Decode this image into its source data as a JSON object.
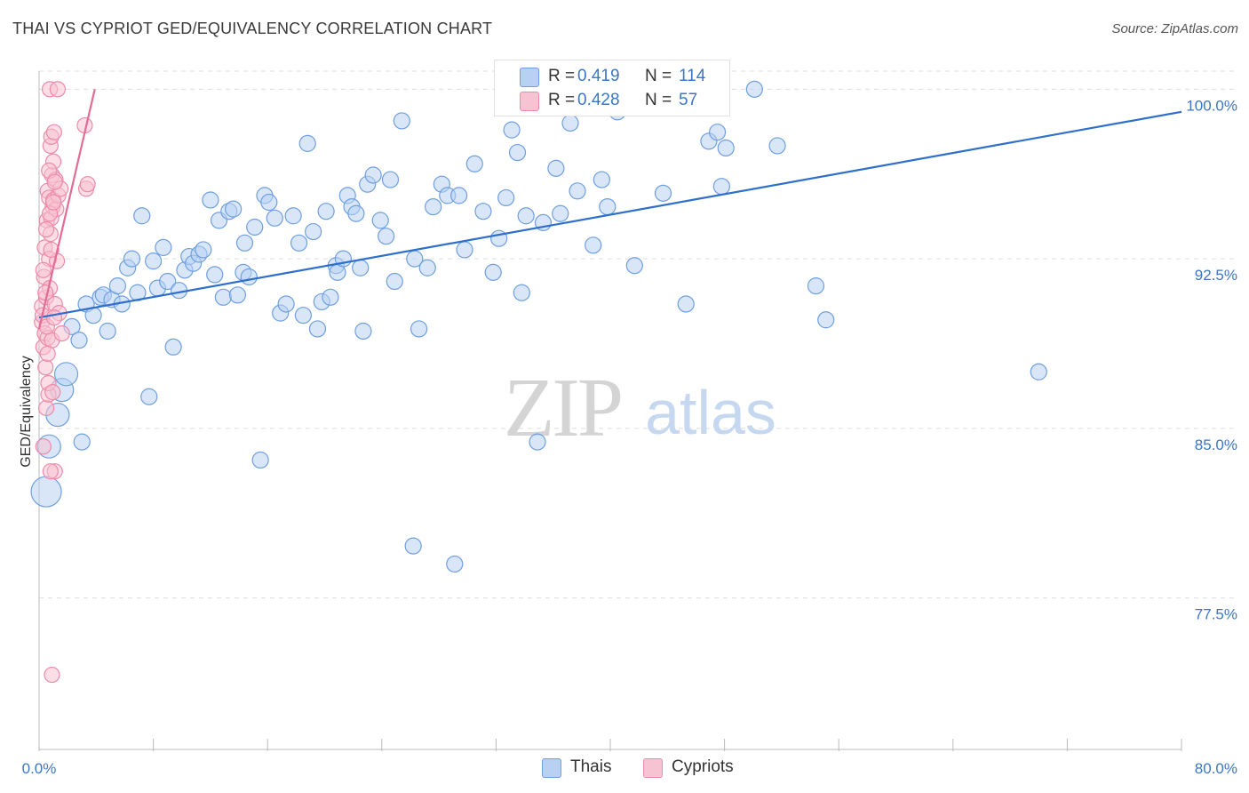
{
  "header": {
    "title": "THAI VS CYPRIOT GED/EQUIVALENCY CORRELATION CHART",
    "source": "Source: ZipAtlas.com"
  },
  "colors": {
    "thai_fill": "#b8d1f3",
    "thai_stroke": "#6f9fe0",
    "thai_line": "#2f6fcc",
    "cyp_fill": "#f7c3d2",
    "cyp_stroke": "#ec8bab",
    "cyp_line": "#e36b95",
    "tick_label": "#3b76c9",
    "grid": "#dddddd"
  },
  "legend": {
    "rows": [
      {
        "r_label": "R =",
        "r_value": "0.419",
        "n_label": "N =",
        "n_value": "114"
      },
      {
        "r_label": "R =",
        "r_value": "0.428",
        "n_label": "N =",
        "n_value": "57"
      }
    ]
  },
  "bottom_legend": {
    "thais": "Thais",
    "cypriots": "Cypriots"
  },
  "watermark": {
    "zip": "ZIP",
    "atlas": "atlas"
  },
  "chart_data": {
    "type": "scatter",
    "title": "THAI VS CYPRIOT GED/EQUIVALENCY CORRELATION CHART",
    "xlabel": "",
    "ylabel": "GED/Equivalency",
    "xlim": [
      0,
      80
    ],
    "ylim": [
      70.8,
      100.8
    ],
    "x_tick_labels": [
      "0.0%",
      "80.0%"
    ],
    "y_ticks": [
      77.5,
      85.0,
      92.5,
      100.0
    ],
    "y_tick_labels": [
      "77.5%",
      "85.0%",
      "92.5%",
      "100.0%"
    ],
    "grid": "horizontal dashed",
    "legend_position": "top-center",
    "series": [
      {
        "name": "Thais",
        "trend": {
          "x": [
            0,
            80
          ],
          "y": [
            89.9,
            99.0
          ]
        },
        "points": [
          [
            0.5,
            82.2
          ],
          [
            0.7,
            84.2
          ],
          [
            1.3,
            85.6
          ],
          [
            1.6,
            86.7
          ],
          [
            1.9,
            87.4
          ],
          [
            2.3,
            89.5
          ],
          [
            2.8,
            88.9
          ],
          [
            3.0,
            84.4
          ],
          [
            3.3,
            90.5
          ],
          [
            3.8,
            90.0
          ],
          [
            4.3,
            90.8
          ],
          [
            4.5,
            90.9
          ],
          [
            4.8,
            89.3
          ],
          [
            5.1,
            90.7
          ],
          [
            5.5,
            91.3
          ],
          [
            5.8,
            90.5
          ],
          [
            6.2,
            92.1
          ],
          [
            6.5,
            92.5
          ],
          [
            6.9,
            91.0
          ],
          [
            7.2,
            94.4
          ],
          [
            7.7,
            86.4
          ],
          [
            8.0,
            92.4
          ],
          [
            8.3,
            91.2
          ],
          [
            8.7,
            93.0
          ],
          [
            9.0,
            91.5
          ],
          [
            9.4,
            88.6
          ],
          [
            9.8,
            91.1
          ],
          [
            10.2,
            92.0
          ],
          [
            10.5,
            92.6
          ],
          [
            10.8,
            92.3
          ],
          [
            11.2,
            92.7
          ],
          [
            11.5,
            92.9
          ],
          [
            12.0,
            95.1
          ],
          [
            12.3,
            91.8
          ],
          [
            12.6,
            94.2
          ],
          [
            12.9,
            90.8
          ],
          [
            13.3,
            94.6
          ],
          [
            13.6,
            94.7
          ],
          [
            13.9,
            90.9
          ],
          [
            14.3,
            91.9
          ],
          [
            14.7,
            91.7
          ],
          [
            15.1,
            93.9
          ],
          [
            15.5,
            83.6
          ],
          [
            15.8,
            95.3
          ],
          [
            16.1,
            95.0
          ],
          [
            16.5,
            94.3
          ],
          [
            16.9,
            90.1
          ],
          [
            17.3,
            90.5
          ],
          [
            17.8,
            94.4
          ],
          [
            18.2,
            93.2
          ],
          [
            18.5,
            90.0
          ],
          [
            18.8,
            97.6
          ],
          [
            19.2,
            93.7
          ],
          [
            19.5,
            89.4
          ],
          [
            19.8,
            90.6
          ],
          [
            20.1,
            94.6
          ],
          [
            20.4,
            90.8
          ],
          [
            20.8,
            92.2
          ],
          [
            20.9,
            91.9
          ],
          [
            21.3,
            92.5
          ],
          [
            21.6,
            95.3
          ],
          [
            21.9,
            94.8
          ],
          [
            22.2,
            94.5
          ],
          [
            22.5,
            92.1
          ],
          [
            22.7,
            89.3
          ],
          [
            23.0,
            95.8
          ],
          [
            23.4,
            96.2
          ],
          [
            23.9,
            94.2
          ],
          [
            24.3,
            93.5
          ],
          [
            24.6,
            96.0
          ],
          [
            24.9,
            91.5
          ],
          [
            25.4,
            98.6
          ],
          [
            26.3,
            92.5
          ],
          [
            26.6,
            89.4
          ],
          [
            27.2,
            92.1
          ],
          [
            27.6,
            94.8
          ],
          [
            28.2,
            95.8
          ],
          [
            28.6,
            95.3
          ],
          [
            29.1,
            79.0
          ],
          [
            29.4,
            95.3
          ],
          [
            29.8,
            92.9
          ],
          [
            30.5,
            96.7
          ],
          [
            31.1,
            94.6
          ],
          [
            31.8,
            91.9
          ],
          [
            32.2,
            93.4
          ],
          [
            32.7,
            95.2
          ],
          [
            33.1,
            98.2
          ],
          [
            33.5,
            97.2
          ],
          [
            33.8,
            91.0
          ],
          [
            34.1,
            94.4
          ],
          [
            34.9,
            84.4
          ],
          [
            35.3,
            94.1
          ],
          [
            36.2,
            96.5
          ],
          [
            36.5,
            94.5
          ],
          [
            37.2,
            98.5
          ],
          [
            37.7,
            95.5
          ],
          [
            38.8,
            93.1
          ],
          [
            39.4,
            96.0
          ],
          [
            39.8,
            94.8
          ],
          [
            40.5,
            99.0
          ],
          [
            41.7,
            92.2
          ],
          [
            43.7,
            95.4
          ],
          [
            45.3,
            90.5
          ],
          [
            46.9,
            97.7
          ],
          [
            47.5,
            98.1
          ],
          [
            47.8,
            95.7
          ],
          [
            48.1,
            97.4
          ],
          [
            50.1,
            100.0
          ],
          [
            51.7,
            97.5
          ],
          [
            54.4,
            91.3
          ],
          [
            55.1,
            89.8
          ],
          [
            70.0,
            87.5
          ],
          [
            14.4,
            93.2
          ],
          [
            26.2,
            79.8
          ]
        ]
      },
      {
        "name": "Cypriots",
        "trend": {
          "x": [
            0,
            3.9
          ],
          "y": [
            89.4,
            100.0
          ]
        },
        "points": [
          [
            0.2,
            90.4
          ],
          [
            0.2,
            89.7
          ],
          [
            0.3,
            88.6
          ],
          [
            0.3,
            84.2
          ],
          [
            0.35,
            91.7
          ],
          [
            0.4,
            93.0
          ],
          [
            0.4,
            89.2
          ],
          [
            0.45,
            87.7
          ],
          [
            0.5,
            85.9
          ],
          [
            0.5,
            90.8
          ],
          [
            0.55,
            94.2
          ],
          [
            0.6,
            95.5
          ],
          [
            0.6,
            89.0
          ],
          [
            0.65,
            86.5
          ],
          [
            0.7,
            95.2
          ],
          [
            0.7,
            92.5
          ],
          [
            0.75,
            100.0
          ],
          [
            0.75,
            91.2
          ],
          [
            0.8,
            97.5
          ],
          [
            0.8,
            93.6
          ],
          [
            0.85,
            97.9
          ],
          [
            0.85,
            94.3
          ],
          [
            0.9,
            88.9
          ],
          [
            0.9,
            96.2
          ],
          [
            0.95,
            94.8
          ],
          [
            1.0,
            96.8
          ],
          [
            1.0,
            95.1
          ],
          [
            1.05,
            98.1
          ],
          [
            1.1,
            90.5
          ],
          [
            1.1,
            83.1
          ],
          [
            1.15,
            96.0
          ],
          [
            1.2,
            94.7
          ],
          [
            1.25,
            92.4
          ],
          [
            1.3,
            100.0
          ],
          [
            1.35,
            95.3
          ],
          [
            1.4,
            90.1
          ],
          [
            1.5,
            95.6
          ],
          [
            1.6,
            89.2
          ],
          [
            0.25,
            90.0
          ],
          [
            0.3,
            92.0
          ],
          [
            0.45,
            91.0
          ],
          [
            0.5,
            93.8
          ],
          [
            0.55,
            89.5
          ],
          [
            0.6,
            88.3
          ],
          [
            0.65,
            87.0
          ],
          [
            0.7,
            96.4
          ],
          [
            0.75,
            94.5
          ],
          [
            0.8,
            83.1
          ],
          [
            0.85,
            92.9
          ],
          [
            0.9,
            74.1
          ],
          [
            0.95,
            86.6
          ],
          [
            1.0,
            95.0
          ],
          [
            1.05,
            89.9
          ],
          [
            1.1,
            95.9
          ],
          [
            3.2,
            98.4
          ],
          [
            3.3,
            95.6
          ],
          [
            3.4,
            95.8
          ]
        ]
      }
    ]
  }
}
